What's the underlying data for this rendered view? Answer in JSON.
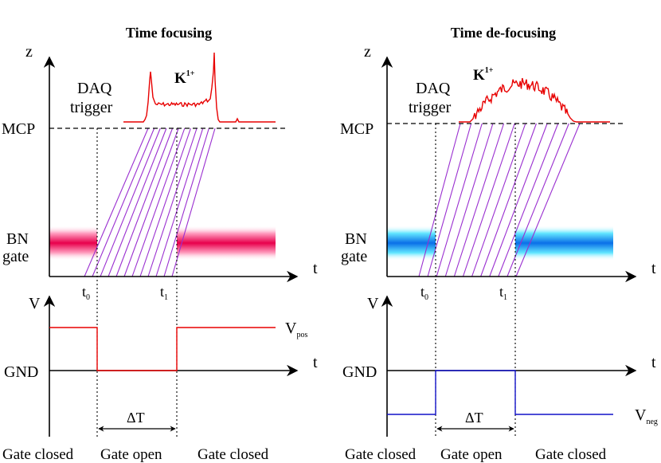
{
  "panels": [
    {
      "title": "Time focusing",
      "axis_z": "z",
      "axis_t": "t",
      "axis_v": "V",
      "daq_line1": "DAQ",
      "daq_line2": "trigger",
      "mcp": "MCP",
      "particle": "K",
      "particle_sup": "1+",
      "bn_line1": "BN",
      "bn_line2": "gate",
      "t0": "t",
      "t0_sub": "0",
      "t1": "t",
      "t1_sub": "1",
      "gnd": "GND",
      "voltage": "V",
      "voltage_sub": "pos",
      "delta": "ΔT",
      "status_left": "Gate closed",
      "status_mid": "Gate open",
      "status_right": "Gate closed",
      "gate_color": "#e8004c",
      "signal_color": "#e80000"
    },
    {
      "title": "Time de-focusing",
      "axis_z": "z",
      "axis_t": "t",
      "axis_v": "V",
      "daq_line1": "DAQ",
      "daq_line2": "trigger",
      "mcp": "MCP",
      "particle": "K",
      "particle_sup": "1+",
      "bn_line1": "BN",
      "bn_line2": "gate",
      "t0": "t",
      "t0_sub": "0",
      "t1": "t",
      "t1_sub": "1",
      "gnd": "GND",
      "voltage": "V",
      "voltage_sub": "neg",
      "delta": "ΔT",
      "status_left": "Gate closed",
      "status_mid": "Gate open",
      "status_right": "Gate closed",
      "gate_color": "#0a6fe8",
      "signal_color": "#1010c8"
    }
  ],
  "trajectory_color": "#9a2fd0"
}
